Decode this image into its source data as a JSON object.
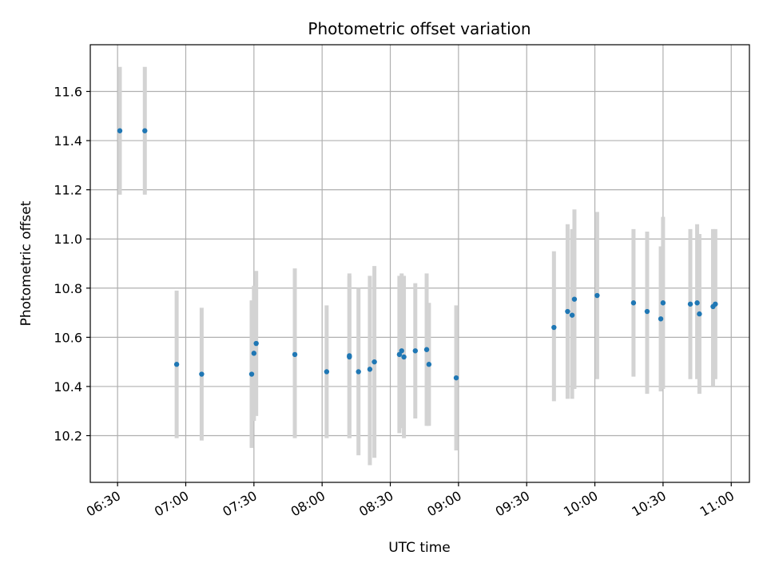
{
  "chart_data": {
    "type": "scatter",
    "title": "Photometric offset variation",
    "xlabel": "UTC time",
    "ylabel": "Photometric offset",
    "x_tick_labels": [
      "06:30",
      "07:00",
      "07:30",
      "08:00",
      "08:30",
      "09:00",
      "09:30",
      "10:00",
      "10:30",
      "11:00"
    ],
    "x_ticks": [
      "06:30",
      "07:00",
      "07:30",
      "08:00",
      "08:30",
      "09:00",
      "09:30",
      "10:00",
      "10:30",
      "11:00"
    ],
    "xlim": [
      "06:18",
      "11:08"
    ],
    "y_ticks": [
      10.2,
      10.4,
      10.6,
      10.8,
      11.0,
      11.2,
      11.4,
      11.6
    ],
    "y_tick_labels": [
      "10.2",
      "10.4",
      "10.6",
      "10.8",
      "11.0",
      "11.2",
      "11.4",
      "11.6"
    ],
    "ylim": [
      10.01,
      11.79
    ],
    "grid": true,
    "legend": "none",
    "point_color": "#1f77b4",
    "errorbar_color": "#d3d3d3",
    "series": [
      {
        "points": [
          {
            "t": "06:31",
            "y": 11.44,
            "lo": 11.18,
            "hi": 11.7
          },
          {
            "t": "06:42",
            "y": 11.44,
            "lo": 11.18,
            "hi": 11.7
          },
          {
            "t": "06:56",
            "y": 10.49,
            "lo": 10.19,
            "hi": 10.79
          },
          {
            "t": "07:07",
            "y": 10.45,
            "lo": 10.18,
            "hi": 10.72
          },
          {
            "t": "07:29",
            "y": 10.45,
            "lo": 10.15,
            "hi": 10.75
          },
          {
            "t": "07:30",
            "y": 10.535,
            "lo": 10.26,
            "hi": 10.81
          },
          {
            "t": "07:31",
            "y": 10.575,
            "lo": 10.28,
            "hi": 10.87
          },
          {
            "t": "07:48",
            "y": 10.53,
            "lo": 10.19,
            "hi": 10.88
          },
          {
            "t": "08:02",
            "y": 10.46,
            "lo": 10.19,
            "hi": 10.73
          },
          {
            "t": "08:12",
            "y": 10.525,
            "lo": 10.19,
            "hi": 10.86
          },
          {
            "t": "08:12",
            "y": 10.52,
            "lo": 10.19,
            "hi": 10.85
          },
          {
            "t": "08:16",
            "y": 10.46,
            "lo": 10.12,
            "hi": 10.8
          },
          {
            "t": "08:21",
            "y": 10.47,
            "lo": 10.08,
            "hi": 10.85
          },
          {
            "t": "08:23",
            "y": 10.5,
            "lo": 10.11,
            "hi": 10.89
          },
          {
            "t": "08:34",
            "y": 10.53,
            "lo": 10.21,
            "hi": 10.85
          },
          {
            "t": "08:35",
            "y": 10.545,
            "lo": 10.23,
            "hi": 10.86
          },
          {
            "t": "08:36",
            "y": 10.52,
            "lo": 10.19,
            "hi": 10.85
          },
          {
            "t": "08:41",
            "y": 10.545,
            "lo": 10.27,
            "hi": 10.82
          },
          {
            "t": "08:46",
            "y": 10.55,
            "lo": 10.24,
            "hi": 10.86
          },
          {
            "t": "08:47",
            "y": 10.49,
            "lo": 10.24,
            "hi": 10.74
          },
          {
            "t": "08:59",
            "y": 10.435,
            "lo": 10.14,
            "hi": 10.73
          },
          {
            "t": "09:42",
            "y": 10.64,
            "lo": 10.34,
            "hi": 10.95
          },
          {
            "t": "09:48",
            "y": 10.705,
            "lo": 10.35,
            "hi": 11.06
          },
          {
            "t": "09:50",
            "y": 10.69,
            "lo": 10.35,
            "hi": 11.04
          },
          {
            "t": "09:51",
            "y": 10.755,
            "lo": 10.39,
            "hi": 11.12
          },
          {
            "t": "10:01",
            "y": 10.77,
            "lo": 10.43,
            "hi": 11.11
          },
          {
            "t": "10:17",
            "y": 10.74,
            "lo": 10.44,
            "hi": 11.04
          },
          {
            "t": "10:23",
            "y": 10.705,
            "lo": 10.37,
            "hi": 11.03
          },
          {
            "t": "10:29",
            "y": 10.675,
            "lo": 10.38,
            "hi": 10.97
          },
          {
            "t": "10:30",
            "y": 10.74,
            "lo": 10.39,
            "hi": 11.09
          },
          {
            "t": "10:42",
            "y": 10.735,
            "lo": 10.43,
            "hi": 11.04
          },
          {
            "t": "10:45",
            "y": 10.74,
            "lo": 10.43,
            "hi": 11.06
          },
          {
            "t": "10:46",
            "y": 10.695,
            "lo": 10.37,
            "hi": 11.02
          },
          {
            "t": "10:52",
            "y": 10.725,
            "lo": 10.4,
            "hi": 11.04
          },
          {
            "t": "10:53",
            "y": 10.735,
            "lo": 10.43,
            "hi": 11.04
          }
        ]
      }
    ]
  }
}
